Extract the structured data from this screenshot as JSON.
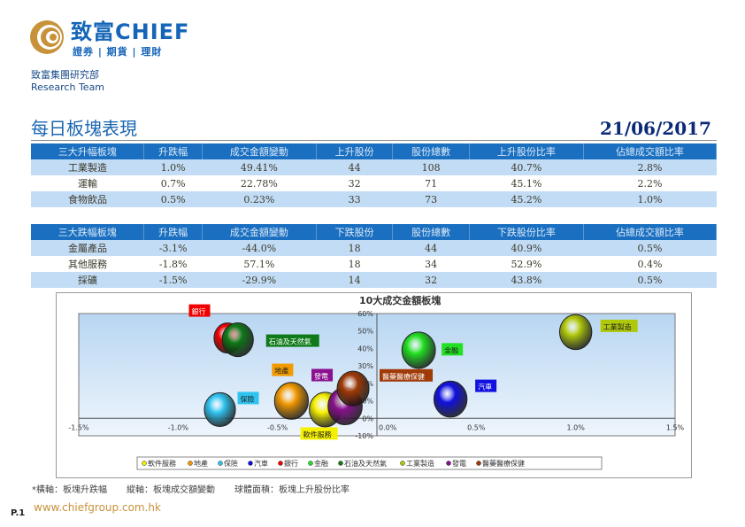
{
  "header": {
    "brand": "致富CHIEF",
    "brand_sub": "證券 | 期貨 | 理財",
    "dept": "致富集團研究部",
    "dept_en": "Research Team"
  },
  "report": {
    "title": "每日板塊表現",
    "date": "21/06/2017"
  },
  "gainers": {
    "headers": [
      "三大升幅板塊",
      "升跌幅",
      "成交金額變動",
      "上升股份",
      "股份總數",
      "上升股份比率",
      "佔總成交額比率"
    ],
    "rows": [
      [
        "工業製造",
        "1.0%",
        "49.41%",
        "44",
        "108",
        "40.7%",
        "2.8%"
      ],
      [
        "運輸",
        "0.7%",
        "22.78%",
        "32",
        "71",
        "45.1%",
        "2.2%"
      ],
      [
        "食物飲品",
        "0.5%",
        "0.23%",
        "33",
        "73",
        "45.2%",
        "1.0%"
      ]
    ]
  },
  "losers": {
    "headers": [
      "三大跌幅板塊",
      "升跌幅",
      "成交金額變動",
      "下跌股份",
      "股份總數",
      "下跌股份比率",
      "佔總成交額比率"
    ],
    "rows": [
      [
        "金屬產品",
        "-3.1%",
        "-44.0%",
        "18",
        "44",
        "40.9%",
        "0.5%"
      ],
      [
        "其他服務",
        "-1.8%",
        "57.1%",
        "18",
        "34",
        "52.9%",
        "0.4%"
      ],
      [
        "採礦",
        "-1.5%",
        "-29.9%",
        "14",
        "32",
        "43.8%",
        "0.5%"
      ]
    ]
  },
  "chart_data": {
    "type": "bubble",
    "title": "10大成交金額板塊",
    "xlabel": "板塊升跌幅",
    "ylabel": "板塊成交額變動",
    "size_label": "板塊上升股份比率",
    "xlim": [
      -1.5,
      1.5
    ],
    "ylim": [
      -10,
      60
    ],
    "xticks": [
      "-1.5%",
      "-1.0%",
      "-0.5%",
      "0.0%",
      "0.5%",
      "1.0%",
      "1.5%"
    ],
    "yticks": [
      "-10%",
      "0%",
      "10%",
      "20%",
      "30%",
      "40%",
      "50%",
      "60%"
    ],
    "legend_position": "bottom",
    "series": [
      {
        "name": "軟件服務",
        "x": -0.26,
        "y": 5,
        "size": 40,
        "color": "#f5f000"
      },
      {
        "name": "地產",
        "x": -0.43,
        "y": 10,
        "size": 45,
        "color": "#f39a00"
      },
      {
        "name": "保險",
        "x": -0.79,
        "y": 5,
        "size": 38,
        "color": "#2fc4f0"
      },
      {
        "name": "汽車",
        "x": 0.37,
        "y": 11,
        "size": 43,
        "color": "#1010e0"
      },
      {
        "name": "銀行",
        "x": -0.75,
        "y": 46,
        "size": 30,
        "color": "#f00000"
      },
      {
        "name": "金融",
        "x": 0.21,
        "y": 39,
        "size": 44,
        "color": "#22e022"
      },
      {
        "name": "石油及天然氣",
        "x": -0.7,
        "y": 45,
        "size": 38,
        "color": "#0f7a18"
      },
      {
        "name": "工業製造",
        "x": 1.0,
        "y": 49.4,
        "size": 40.7,
        "color": "#b0c80a"
      },
      {
        "name": "發電",
        "x": -0.16,
        "y": 7,
        "size": 46,
        "color": "#8a1090"
      },
      {
        "name": "醫藥醫療保健",
        "x": -0.12,
        "y": 17,
        "size": 40,
        "color": "#a03a06"
      }
    ]
  },
  "footnote": [
    "*橫軸：板塊升跌幅",
    "縱軸：板塊成交額變動",
    "球體面積：板塊上升股份比率"
  ],
  "footer": {
    "url": "www.chiefgroup.com.hk",
    "page": "P.1"
  }
}
